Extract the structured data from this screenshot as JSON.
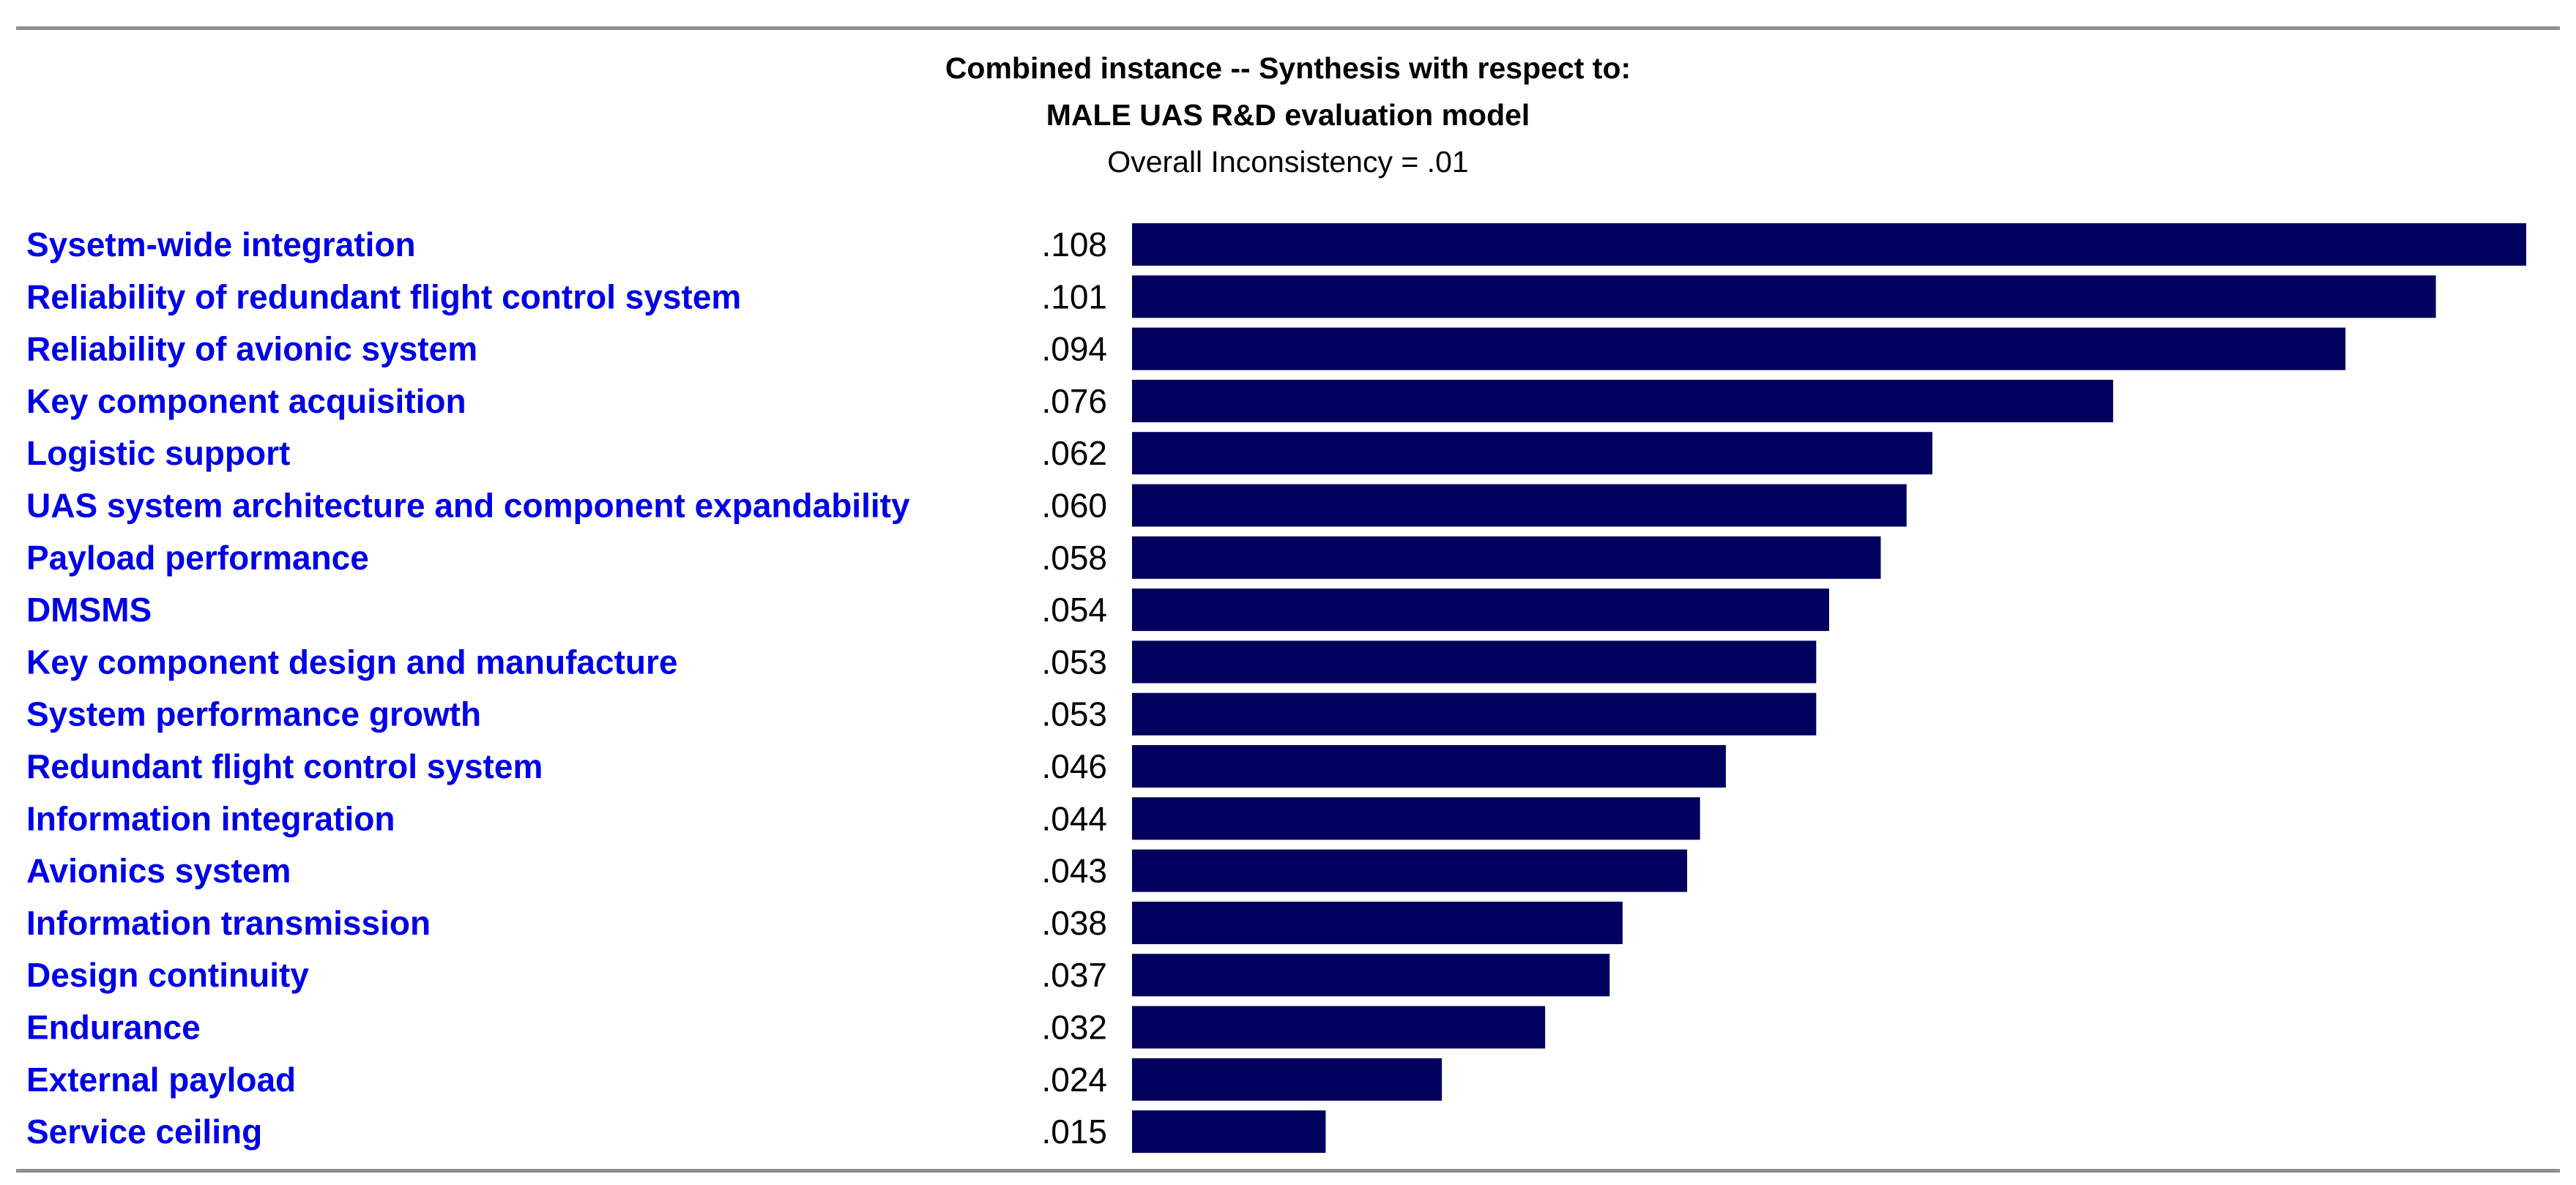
{
  "chart_data": {
    "type": "bar",
    "orientation": "horizontal",
    "title": "Combined instance -- Synthesis with respect to:",
    "subtitle": "MALE UAS R&D evaluation model",
    "annotation": "Overall Inconsistency = .01",
    "categories": [
      "Sysetm-wide integration",
      "Reliability of redundant flight control system",
      "Reliability of avionic system",
      "Key component acquisition",
      "Logistic support",
      "UAS system architecture and component expandability",
      "Payload performance",
      "DMSMS",
      "Key component design and manufacture",
      "System performance growth",
      "Redundant flight control system",
      "Information integration",
      "Avionics system",
      "Information transmission",
      "Design continuity",
      "Endurance",
      "External payload",
      "Service ceiling"
    ],
    "values": [
      0.108,
      0.101,
      0.094,
      0.076,
      0.062,
      0.06,
      0.058,
      0.054,
      0.053,
      0.053,
      0.046,
      0.044,
      0.043,
      0.038,
      0.037,
      0.032,
      0.024,
      0.015
    ],
    "value_labels": [
      ".108",
      ".101",
      ".094",
      ".076",
      ".062",
      ".060",
      ".058",
      ".054",
      ".053",
      ".053",
      ".046",
      ".044",
      ".043",
      ".038",
      ".037",
      ".032",
      ".024",
      ".015"
    ],
    "xlim": [
      0,
      0.108
    ],
    "grid": false,
    "legend": "none",
    "colors": {
      "bar": "#00005e",
      "category_text": "#0000e6",
      "value_text": "#000000",
      "frame": "#8f8f8f"
    }
  }
}
